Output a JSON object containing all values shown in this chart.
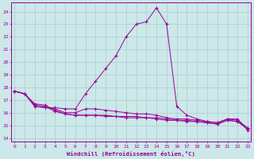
{
  "xlabel": "Windchill (Refroidissement éolien,°C)",
  "bg_color": "#cce8e8",
  "grid_color": "#aacccc",
  "line_color": "#990099",
  "x_ticks": [
    0,
    1,
    2,
    3,
    4,
    5,
    6,
    7,
    8,
    9,
    10,
    11,
    12,
    13,
    14,
    15,
    16,
    17,
    18,
    19,
    20,
    21,
    22,
    23
  ],
  "y_ticks": [
    14,
    15,
    16,
    17,
    18,
    19,
    20,
    21,
    22,
    23,
    24
  ],
  "xlim": [
    -0.3,
    23.3
  ],
  "ylim": [
    13.7,
    24.7
  ],
  "lines": [
    {
      "x": [
        0,
        1,
        2,
        3,
        4,
        5,
        6,
        7,
        8,
        9,
        10,
        11,
        12,
        13,
        14,
        15,
        16,
        17,
        18,
        19,
        20,
        21,
        22,
        23
      ],
      "y": [
        17.7,
        17.5,
        16.5,
        16.4,
        16.4,
        16.3,
        16.3,
        17.5,
        18.5,
        19.5,
        20.5,
        22.0,
        23.0,
        23.2,
        24.3,
        23.0,
        16.5,
        15.8,
        15.5,
        15.3,
        15.2,
        15.5,
        15.5,
        14.6
      ]
    },
    {
      "x": [
        0,
        1,
        2,
        3,
        4,
        5,
        6,
        7,
        8,
        9,
        10,
        11,
        12,
        13,
        14,
        15,
        16,
        17,
        18,
        19,
        20,
        21,
        22,
        23
      ],
      "y": [
        17.7,
        17.5,
        16.5,
        16.4,
        16.3,
        16.0,
        16.0,
        16.3,
        16.3,
        16.2,
        16.1,
        16.0,
        15.9,
        15.9,
        15.8,
        15.6,
        15.5,
        15.5,
        15.4,
        15.3,
        15.2,
        15.5,
        15.4,
        14.8
      ]
    },
    {
      "x": [
        0,
        1,
        2,
        3,
        4,
        5,
        6,
        7,
        8,
        9,
        10,
        11,
        12,
        13,
        14,
        15,
        16,
        17,
        18,
        19,
        20,
        21,
        22,
        23
      ],
      "y": [
        17.7,
        17.5,
        16.6,
        16.5,
        16.1,
        15.9,
        15.8,
        15.8,
        15.8,
        15.8,
        15.7,
        15.7,
        15.7,
        15.6,
        15.6,
        15.5,
        15.4,
        15.4,
        15.3,
        15.2,
        15.1,
        15.4,
        15.3,
        14.7
      ]
    },
    {
      "x": [
        0,
        1,
        2,
        3,
        4,
        5,
        6,
        7,
        8,
        9,
        10,
        11,
        12,
        13,
        14,
        15,
        16,
        17,
        18,
        19,
        20,
        21,
        22,
        23
      ],
      "y": [
        17.7,
        17.5,
        16.7,
        16.6,
        16.2,
        15.9,
        15.8,
        15.8,
        15.8,
        15.7,
        15.7,
        15.6,
        15.6,
        15.6,
        15.5,
        15.4,
        15.4,
        15.3,
        15.3,
        15.2,
        15.1,
        15.4,
        15.3,
        14.7
      ]
    }
  ]
}
